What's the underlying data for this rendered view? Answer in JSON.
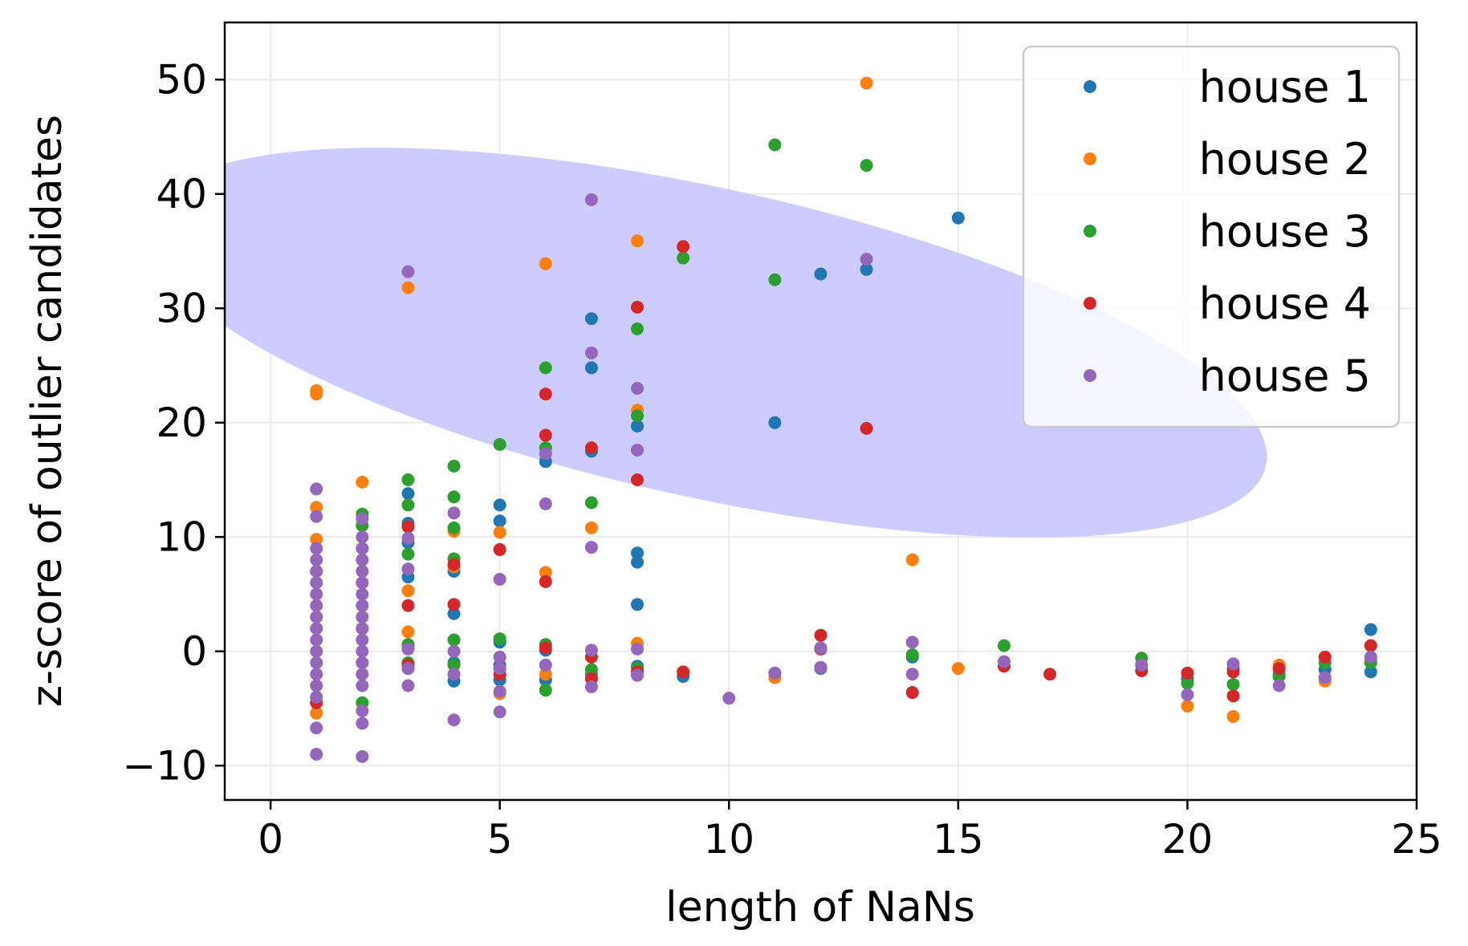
{
  "chart_data": {
    "type": "scatter",
    "title": "",
    "xlabel": "length of NaNs",
    "ylabel": "z-score of outlier candidates",
    "xlim": [
      -1,
      25
    ],
    "ylim": [
      -13,
      55
    ],
    "xticks": [
      0,
      5,
      10,
      15,
      20,
      25
    ],
    "xtick_labels": [
      "0",
      "5",
      "10",
      "15",
      "20",
      "25"
    ],
    "yticks": [
      -10,
      0,
      10,
      20,
      30,
      40,
      50
    ],
    "ytick_labels": [
      "−10",
      "0",
      "10",
      "20",
      "30",
      "40",
      "50"
    ],
    "grid": true,
    "legend_position": "top-right",
    "highlight_ellipse": {
      "center": [
        9.5,
        27
      ],
      "semi_axis_x": 8.9,
      "semi_axis_y": 19,
      "rotation_deg": 30,
      "color": "#ccccff"
    },
    "series": [
      {
        "name": "house 1",
        "color": "#1f77b4",
        "points": [
          [
            3,
            13.8
          ],
          [
            3,
            11.2
          ],
          [
            3,
            9.5
          ],
          [
            3,
            6.5
          ],
          [
            3,
            0.5
          ],
          [
            3,
            -1.5
          ],
          [
            4,
            7.0
          ],
          [
            4,
            3.3
          ],
          [
            4,
            -1.0
          ],
          [
            4,
            -2.6
          ],
          [
            5,
            12.8
          ],
          [
            5,
            11.4
          ],
          [
            5,
            0.8
          ],
          [
            5,
            -1.2
          ],
          [
            5,
            -2.5
          ],
          [
            6,
            16.6
          ],
          [
            6,
            0.1
          ],
          [
            6,
            -2.5
          ],
          [
            7,
            29.1
          ],
          [
            7,
            24.8
          ],
          [
            7,
            17.5
          ],
          [
            7,
            -2.0
          ],
          [
            8,
            19.7
          ],
          [
            8,
            8.6
          ],
          [
            8,
            7.8
          ],
          [
            8,
            4.1
          ],
          [
            8,
            -1.3
          ],
          [
            9,
            -2.2
          ],
          [
            11,
            20.0
          ],
          [
            11,
            -1.9
          ],
          [
            12,
            33.0
          ],
          [
            12,
            -1.5
          ],
          [
            13,
            33.4
          ],
          [
            15,
            37.9
          ],
          [
            14,
            -0.5
          ],
          [
            19,
            -1.2
          ],
          [
            20,
            -2.4
          ],
          [
            21,
            -1.5
          ],
          [
            22,
            -2.0
          ],
          [
            23,
            -1.6
          ],
          [
            24,
            1.9
          ],
          [
            24,
            -1.8
          ]
        ]
      },
      {
        "name": "house 2",
        "color": "#ff7f0e",
        "points": [
          [
            1,
            22.8
          ],
          [
            1,
            22.5
          ],
          [
            1,
            12.6
          ],
          [
            1,
            9.8
          ],
          [
            1,
            7.0
          ],
          [
            1,
            -5.4
          ],
          [
            2,
            14.8
          ],
          [
            2,
            9.0
          ],
          [
            2,
            -1.0
          ],
          [
            3,
            31.8
          ],
          [
            3,
            5.3
          ],
          [
            3,
            1.7
          ],
          [
            4,
            10.5
          ],
          [
            4,
            7.4
          ],
          [
            5,
            10.4
          ],
          [
            5,
            -3.7
          ],
          [
            6,
            33.9
          ],
          [
            6,
            6.9
          ],
          [
            6,
            -2.0
          ],
          [
            7,
            10.8
          ],
          [
            7,
            -2.4
          ],
          [
            8,
            35.9
          ],
          [
            8,
            21.1
          ],
          [
            8,
            0.7
          ],
          [
            11,
            -2.3
          ],
          [
            13,
            49.7
          ],
          [
            14,
            8.0
          ],
          [
            15,
            -1.5
          ],
          [
            20,
            -4.8
          ],
          [
            21,
            -5.7
          ],
          [
            22,
            -1.2
          ],
          [
            23,
            -2.6
          ],
          [
            24,
            -0.8
          ]
        ]
      },
      {
        "name": "house 3",
        "color": "#2ca02c",
        "points": [
          [
            2,
            12.0
          ],
          [
            2,
            11.0
          ],
          [
            2,
            -4.5
          ],
          [
            3,
            15.0
          ],
          [
            3,
            12.8
          ],
          [
            3,
            8.5
          ],
          [
            3,
            0.6
          ],
          [
            3,
            -1.0
          ],
          [
            4,
            16.2
          ],
          [
            4,
            13.5
          ],
          [
            4,
            10.8
          ],
          [
            4,
            8.1
          ],
          [
            4,
            1.0
          ],
          [
            4,
            -1.2
          ],
          [
            5,
            18.1
          ],
          [
            5,
            1.1
          ],
          [
            5,
            -1.5
          ],
          [
            6,
            24.8
          ],
          [
            6,
            17.8
          ],
          [
            6,
            0.6
          ],
          [
            6,
            -3.4
          ],
          [
            7,
            13.0
          ],
          [
            7,
            -1.6
          ],
          [
            8,
            28.2
          ],
          [
            8,
            20.6
          ],
          [
            8,
            -1.5
          ],
          [
            9,
            34.4
          ],
          [
            11,
            44.3
          ],
          [
            11,
            32.5
          ],
          [
            13,
            42.5
          ],
          [
            14,
            -0.3
          ],
          [
            16,
            0.5
          ],
          [
            19,
            -0.6
          ],
          [
            20,
            -2.8
          ],
          [
            21,
            -2.9
          ],
          [
            22,
            -2.2
          ],
          [
            23,
            -1.0
          ],
          [
            24,
            -1.0
          ]
        ]
      },
      {
        "name": "house 4",
        "color": "#d62728",
        "points": [
          [
            1,
            -4.5
          ],
          [
            2,
            2.0
          ],
          [
            3,
            10.9
          ],
          [
            3,
            4.0
          ],
          [
            3,
            -1.2
          ],
          [
            4,
            7.6
          ],
          [
            4,
            4.1
          ],
          [
            5,
            8.9
          ],
          [
            5,
            -2.0
          ],
          [
            6,
            22.5
          ],
          [
            6,
            18.9
          ],
          [
            6,
            6.1
          ],
          [
            6,
            0.3
          ],
          [
            7,
            17.8
          ],
          [
            7,
            -0.5
          ],
          [
            7,
            -2.4
          ],
          [
            8,
            30.1
          ],
          [
            8,
            15.0
          ],
          [
            8,
            -1.8
          ],
          [
            9,
            35.4
          ],
          [
            9,
            -1.8
          ],
          [
            12,
            1.4
          ],
          [
            12,
            0.2
          ],
          [
            13,
            19.5
          ],
          [
            14,
            -3.6
          ],
          [
            16,
            -1.3
          ],
          [
            17,
            -2.0
          ],
          [
            19,
            -1.7
          ],
          [
            20,
            -1.9
          ],
          [
            21,
            -3.9
          ],
          [
            21,
            -1.8
          ],
          [
            22,
            -1.5
          ],
          [
            23,
            -0.5
          ],
          [
            24,
            0.5
          ]
        ]
      },
      {
        "name": "house 5",
        "color": "#9467bd",
        "points": [
          [
            1,
            14.2
          ],
          [
            1,
            11.8
          ],
          [
            1,
            9.0
          ],
          [
            1,
            8.0
          ],
          [
            1,
            7.0
          ],
          [
            1,
            6.0
          ],
          [
            1,
            5.0
          ],
          [
            1,
            4.0
          ],
          [
            1,
            3.0
          ],
          [
            1,
            2.0
          ],
          [
            1,
            1.0
          ],
          [
            1,
            0.0
          ],
          [
            1,
            -1.0
          ],
          [
            1,
            -2.0
          ],
          [
            1,
            -3.0
          ],
          [
            1,
            -4.0
          ],
          [
            1,
            -6.7
          ],
          [
            1,
            -9.0
          ],
          [
            2,
            11.6
          ],
          [
            2,
            10.0
          ],
          [
            2,
            9.0
          ],
          [
            2,
            8.0
          ],
          [
            2,
            7.0
          ],
          [
            2,
            6.0
          ],
          [
            2,
            5.0
          ],
          [
            2,
            4.0
          ],
          [
            2,
            3.0
          ],
          [
            2,
            2.0
          ],
          [
            2,
            1.0
          ],
          [
            2,
            0.0
          ],
          [
            2,
            -1.0
          ],
          [
            2,
            -2.0
          ],
          [
            2,
            -3.0
          ],
          [
            2,
            -5.2
          ],
          [
            2,
            -6.3
          ],
          [
            2,
            -9.2
          ],
          [
            3,
            33.2
          ],
          [
            3,
            9.9
          ],
          [
            3,
            7.2
          ],
          [
            3,
            0.2
          ],
          [
            3,
            -1.5
          ],
          [
            3,
            -3.0
          ],
          [
            4,
            12.1
          ],
          [
            4,
            0.0
          ],
          [
            4,
            -2.0
          ],
          [
            4,
            -6.0
          ],
          [
            5,
            6.3
          ],
          [
            5,
            -0.5
          ],
          [
            5,
            -1.5
          ],
          [
            5,
            -3.5
          ],
          [
            5,
            -5.3
          ],
          [
            6,
            17.3
          ],
          [
            6,
            12.9
          ],
          [
            6,
            -1.2
          ],
          [
            7,
            39.5
          ],
          [
            7,
            26.1
          ],
          [
            7,
            9.1
          ],
          [
            7,
            0.1
          ],
          [
            7,
            -3.1
          ],
          [
            8,
            23.0
          ],
          [
            8,
            17.6
          ],
          [
            8,
            0.2
          ],
          [
            8,
            -2.1
          ],
          [
            10,
            -4.1
          ],
          [
            11,
            -1.9
          ],
          [
            12,
            0.3
          ],
          [
            12,
            -1.4
          ],
          [
            13,
            34.3
          ],
          [
            14,
            0.8
          ],
          [
            14,
            -2.0
          ],
          [
            16,
            -0.9
          ],
          [
            19,
            -1.2
          ],
          [
            20,
            -3.8
          ],
          [
            21,
            -1.1
          ],
          [
            22,
            -3.0
          ],
          [
            23,
            -2.3
          ],
          [
            24,
            -0.5
          ]
        ]
      }
    ]
  }
}
